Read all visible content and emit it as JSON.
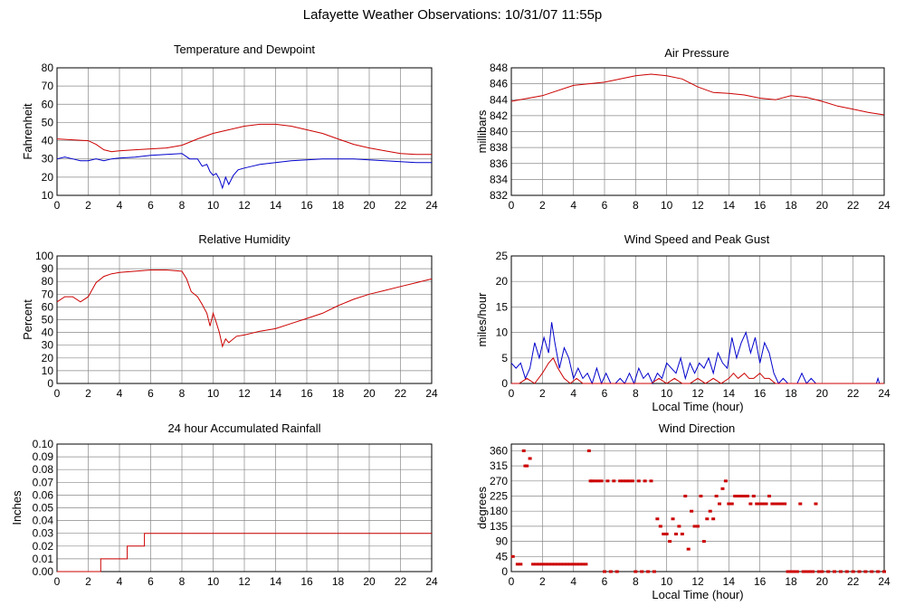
{
  "page": {
    "title": "Lafayette Weather Observations: 10/31/07 11:55p"
  },
  "colors": {
    "red": "#cc0000",
    "blue": "#0000cc",
    "grid": "#888888"
  },
  "chart_data": [
    {
      "id": "temp",
      "type": "line",
      "title": "Temperature and Dewpoint",
      "xlabel": "",
      "ylabel": "Fahrenheit",
      "xlim": [
        0,
        24
      ],
      "ylim": [
        10,
        80
      ],
      "xticks": [
        0,
        2,
        4,
        6,
        8,
        10,
        12,
        14,
        16,
        18,
        20,
        22,
        24
      ],
      "yticks": [
        10,
        20,
        30,
        40,
        50,
        60,
        70,
        80
      ],
      "series": [
        {
          "color": "red",
          "x": [
            0,
            1,
            2,
            2.5,
            3,
            3.5,
            4,
            5,
            6,
            7,
            8,
            9,
            10,
            11,
            12,
            13,
            14,
            15,
            16,
            17,
            18,
            19,
            20,
            21,
            22,
            23,
            24
          ],
          "y": [
            41,
            40.5,
            40,
            38,
            35,
            34,
            34.5,
            35,
            35.5,
            36,
            37.5,
            41,
            44,
            46,
            48,
            49,
            49,
            48,
            46,
            44,
            41,
            38,
            36,
            34.5,
            33,
            32.5,
            32.5
          ]
        },
        {
          "color": "blue",
          "x": [
            0,
            0.5,
            1,
            1.5,
            2,
            2.5,
            3,
            3.5,
            4,
            5,
            6,
            7,
            8,
            8.5,
            9,
            9.3,
            9.6,
            9.8,
            10,
            10.2,
            10.4,
            10.6,
            10.8,
            11,
            11.3,
            11.6,
            12,
            12.5,
            13,
            14,
            15,
            16,
            17,
            18,
            19,
            20,
            21,
            22,
            23,
            24
          ],
          "y": [
            30,
            31,
            30,
            29,
            29,
            30,
            29,
            30,
            30.5,
            31,
            32,
            32.5,
            33,
            30,
            30,
            26,
            27,
            23,
            21,
            22,
            19,
            14,
            20,
            16,
            21,
            24,
            25,
            26,
            27,
            28,
            29,
            29.5,
            30,
            30,
            30,
            29.5,
            29,
            28.5,
            28,
            28
          ]
        }
      ]
    },
    {
      "id": "pressure",
      "type": "line",
      "title": "Air Pressure",
      "xlabel": "",
      "ylabel": "millibars",
      "xlim": [
        0,
        24
      ],
      "ylim": [
        832,
        848
      ],
      "xticks": [
        0,
        2,
        4,
        6,
        8,
        10,
        12,
        14,
        16,
        18,
        20,
        22,
        24
      ],
      "yticks": [
        832,
        834,
        836,
        838,
        840,
        842,
        844,
        846,
        848
      ],
      "series": [
        {
          "color": "red",
          "x": [
            0,
            2,
            4,
            6,
            8,
            9,
            10,
            11,
            12,
            13,
            14,
            15,
            16,
            17,
            18,
            19,
            20,
            21,
            22,
            23,
            24
          ],
          "y": [
            843.8,
            844.5,
            845.8,
            846.2,
            847.0,
            847.2,
            847.0,
            846.6,
            845.6,
            844.9,
            844.8,
            844.6,
            844.2,
            844.0,
            844.5,
            844.3,
            843.8,
            843.2,
            842.8,
            842.4,
            842.1
          ]
        }
      ]
    },
    {
      "id": "humidity",
      "type": "line",
      "title": "Relative Humidity",
      "xlabel": "",
      "ylabel": "Percent",
      "xlim": [
        0,
        24
      ],
      "ylim": [
        0,
        100
      ],
      "xticks": [
        0,
        2,
        4,
        6,
        8,
        10,
        12,
        14,
        16,
        18,
        20,
        22,
        24
      ],
      "yticks": [
        0,
        10,
        20,
        30,
        40,
        50,
        60,
        70,
        80,
        90,
        100
      ],
      "series": [
        {
          "color": "red",
          "x": [
            0,
            0.5,
            1,
            1.5,
            2,
            2.5,
            3,
            3.5,
            4,
            5,
            6,
            7,
            8,
            8.3,
            8.6,
            9,
            9.3,
            9.6,
            9.8,
            10,
            10.2,
            10.4,
            10.6,
            10.8,
            11,
            11.5,
            12,
            13,
            14,
            15,
            16,
            17,
            18,
            19,
            20,
            21,
            22,
            23,
            24
          ],
          "y": [
            64,
            68,
            68,
            64,
            68,
            79,
            84,
            86,
            87,
            88,
            89,
            89,
            88,
            82,
            72,
            68,
            62,
            55,
            45,
            55,
            48,
            40,
            29,
            35,
            32,
            37,
            38,
            41,
            43,
            47,
            51,
            55,
            61,
            66,
            70,
            73,
            76,
            79,
            82
          ]
        }
      ]
    },
    {
      "id": "wind",
      "type": "line",
      "title": "Wind Speed and Peak Gust",
      "xlabel": "Local Time (hour)",
      "ylabel": "miles/hour",
      "xlim": [
        0,
        24
      ],
      "ylim": [
        0,
        25
      ],
      "xticks": [
        0,
        2,
        4,
        6,
        8,
        10,
        12,
        14,
        16,
        18,
        20,
        22,
        24
      ],
      "yticks": [
        0,
        5,
        10,
        15,
        20,
        25
      ],
      "series": [
        {
          "color": "blue",
          "x": [
            0,
            0.3,
            0.6,
            0.9,
            1.2,
            1.5,
            1.8,
            2.1,
            2.4,
            2.6,
            2.8,
            3.1,
            3.4,
            3.7,
            4.0,
            4.3,
            4.6,
            4.9,
            5.2,
            5.5,
            5.8,
            6.1,
            6.4,
            6.7,
            7.0,
            7.3,
            7.6,
            7.9,
            8.2,
            8.5,
            8.8,
            9.1,
            9.4,
            9.7,
            10.0,
            10.3,
            10.6,
            10.9,
            11.2,
            11.5,
            11.8,
            12.1,
            12.4,
            12.7,
            13.0,
            13.3,
            13.6,
            13.9,
            14.2,
            14.5,
            14.8,
            15.1,
            15.4,
            15.7,
            16.0,
            16.3,
            16.6,
            16.9,
            17.2,
            17.5,
            17.8,
            18.1,
            18.4,
            18.7,
            19.0,
            19.3,
            19.6,
            19.9,
            20.2,
            23.5,
            23.6,
            23.7,
            24
          ],
          "y": [
            4,
            3,
            4,
            1,
            3,
            8,
            5,
            9,
            6,
            12,
            8,
            3,
            7,
            5,
            1,
            3,
            1,
            2,
            0,
            3,
            0,
            2,
            0,
            0,
            1,
            0,
            2,
            0,
            3,
            1,
            2,
            0,
            2,
            1,
            4,
            3,
            2,
            5,
            1,
            4,
            2,
            4,
            3,
            5,
            2,
            6,
            4,
            3,
            9,
            5,
            8,
            10,
            6,
            9,
            4,
            8,
            6,
            2,
            0,
            1,
            0,
            0,
            0,
            2,
            0,
            1,
            0,
            0,
            0,
            0,
            1,
            0,
            0
          ]
        },
        {
          "color": "red",
          "x": [
            0,
            0.5,
            1.0,
            1.5,
            2.0,
            2.4,
            2.7,
            3.0,
            3.4,
            3.8,
            4.2,
            4.6,
            5.0,
            5.5,
            6.0,
            7.0,
            8.0,
            9.0,
            9.5,
            10.0,
            10.5,
            11.0,
            11.5,
            12.0,
            12.5,
            13.0,
            13.5,
            14.0,
            14.3,
            14.6,
            15.0,
            15.3,
            15.6,
            16.0,
            16.3,
            16.6,
            17.0,
            17.5,
            18,
            24
          ],
          "y": [
            0,
            0,
            1,
            0,
            2,
            4,
            5,
            3,
            1,
            0,
            1,
            0,
            0,
            0,
            0,
            0,
            0,
            0,
            1,
            0,
            1,
            0,
            0,
            1,
            0,
            1,
            0,
            1,
            2,
            1,
            2,
            1,
            1,
            2,
            1,
            1,
            0,
            0,
            0,
            0
          ]
        }
      ]
    },
    {
      "id": "rain",
      "type": "line",
      "title": "24 hour Accumulated Rainfall",
      "xlabel": "",
      "ylabel": "Inches",
      "xlim": [
        0,
        24
      ],
      "ylim": [
        0,
        0.1
      ],
      "xticks": [
        0,
        2,
        4,
        6,
        8,
        10,
        12,
        14,
        16,
        18,
        20,
        22,
        24
      ],
      "yticks": [
        0.0,
        0.01,
        0.02,
        0.03,
        0.04,
        0.05,
        0.06,
        0.07,
        0.08,
        0.09,
        0.1
      ],
      "step": true,
      "series": [
        {
          "color": "red",
          "x": [
            0,
            2.8,
            2.8,
            4.5,
            4.5,
            5.6,
            5.6,
            24
          ],
          "y": [
            0,
            0,
            0.01,
            0.01,
            0.02,
            0.02,
            0.03,
            0.03
          ]
        }
      ]
    },
    {
      "id": "direction",
      "type": "scatter",
      "title": "Wind Direction",
      "xlabel": "Local Time (hour)",
      "ylabel": "degrees",
      "xlim": [
        0,
        24
      ],
      "ylim": [
        0,
        380
      ],
      "xticks": [
        0,
        2,
        4,
        6,
        8,
        10,
        12,
        14,
        16,
        18,
        20,
        22,
        24
      ],
      "yticks": [
        0,
        45,
        90,
        135,
        180,
        225,
        270,
        315,
        360
      ],
      "series": [
        {
          "color": "red",
          "x": [
            0.1,
            0.4,
            0.6,
            0.8,
            0.9,
            1.0,
            1.2,
            1.4,
            1.6,
            1.8,
            2.0,
            2.2,
            2.4,
            2.6,
            2.8,
            3.0,
            3.2,
            3.4,
            3.6,
            3.8,
            4.0,
            4.2,
            4.4,
            4.6,
            4.8,
            5.0,
            5.1,
            5.2,
            5.4,
            5.6,
            5.8,
            6.0,
            6.2,
            6.4,
            6.6,
            6.8,
            7.0,
            7.2,
            7.4,
            7.6,
            7.8,
            8.0,
            8.2,
            8.4,
            8.6,
            8.8,
            9.0,
            9.2,
            9.4,
            9.6,
            9.8,
            10.0,
            10.2,
            10.4,
            10.6,
            10.8,
            11.0,
            11.2,
            11.4,
            11.6,
            11.8,
            12.0,
            12.2,
            12.4,
            12.6,
            12.8,
            13.0,
            13.2,
            13.4,
            13.6,
            13.8,
            14.0,
            14.2,
            14.4,
            14.6,
            14.8,
            15.0,
            15.2,
            15.4,
            15.6,
            15.8,
            16.0,
            16.2,
            16.4,
            16.6,
            16.8,
            17.0,
            17.2,
            17.4,
            17.6,
            17.8,
            18.0,
            18.2,
            18.4,
            18.6,
            18.8,
            19.0,
            19.2,
            19.4,
            19.6,
            19.8,
            20.0,
            20.4,
            20.8,
            21.2,
            21.6,
            22.0,
            22.4,
            22.8,
            23.2,
            23.6,
            24.0
          ],
          "y": [
            45,
            22,
            22,
            360,
            315,
            315,
            337,
            22,
            22,
            22,
            22,
            22,
            22,
            22,
            22,
            22,
            22,
            22,
            22,
            22,
            22,
            22,
            22,
            22,
            22,
            360,
            270,
            270,
            270,
            270,
            270,
            0,
            270,
            0,
            270,
            0,
            270,
            270,
            270,
            270,
            270,
            0,
            270,
            0,
            270,
            0,
            270,
            0,
            157,
            135,
            112,
            112,
            90,
            157,
            112,
            135,
            112,
            225,
            67,
            180,
            135,
            135,
            225,
            90,
            157,
            180,
            157,
            225,
            202,
            247,
            270,
            202,
            202,
            225,
            225,
            225,
            225,
            225,
            202,
            225,
            202,
            202,
            202,
            202,
            225,
            202,
            202,
            202,
            202,
            202,
            0,
            0,
            0,
            0,
            202,
            0,
            0,
            0,
            0,
            202,
            0,
            0,
            0,
            0,
            0,
            0,
            0,
            0,
            0,
            0,
            0,
            0
          ]
        }
      ]
    }
  ]
}
